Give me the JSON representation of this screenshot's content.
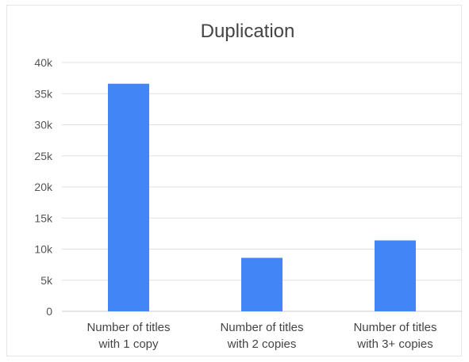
{
  "chart_data": {
    "type": "bar",
    "title": "Duplication",
    "categories": [
      "Number of titles with 1 copy",
      "Number of titles with 2 copies",
      "Number of titles with 3+ copies"
    ],
    "category_lines": [
      [
        "Number of titles",
        "with 1 copy"
      ],
      [
        "Number of titles",
        "with 2 copies"
      ],
      [
        "Number of titles",
        "with 3+ copies"
      ]
    ],
    "values": [
      36600,
      8600,
      11400
    ],
    "ylim": [
      0,
      40000
    ],
    "yticks": [
      0,
      5000,
      10000,
      15000,
      20000,
      25000,
      30000,
      35000,
      40000
    ],
    "ytick_labels": [
      "0",
      "5k",
      "10k",
      "15k",
      "20k",
      "25k",
      "30k",
      "35k",
      "40k"
    ],
    "bar_color": "#4285f4",
    "grid_color": "#e0e0e0",
    "grid": true,
    "legend": "none"
  }
}
